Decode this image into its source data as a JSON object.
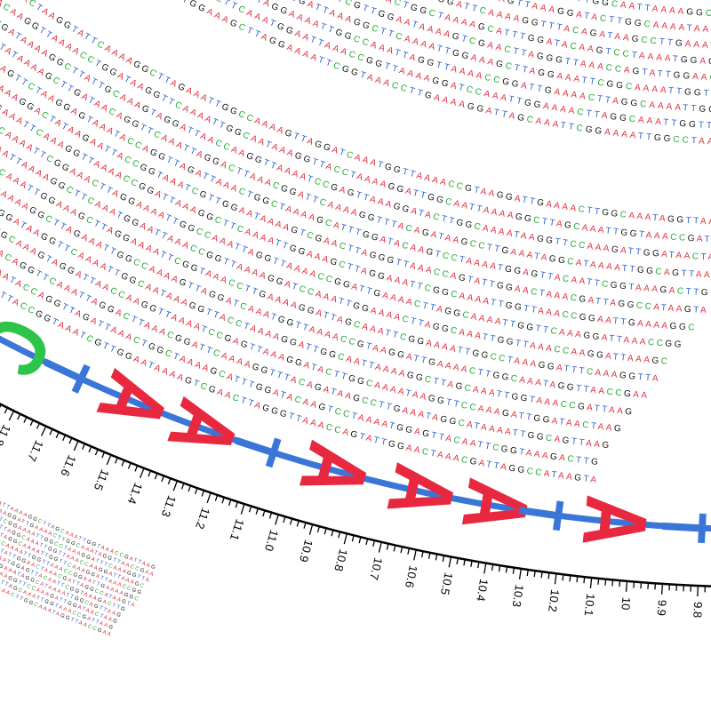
{
  "sequence_logo": {
    "letters": [
      "C",
      "T",
      "A",
      "A",
      "T",
      "A",
      "A",
      "A",
      "T",
      "A",
      "T"
    ],
    "ticks": [
      "11.8",
      "11.7",
      "11.6",
      "11.5",
      "11.4",
      "11.3",
      "11.2",
      "11.1",
      "11.0",
      "10.9",
      "10.8",
      "10.7",
      "10.6",
      "10.5",
      "10.4",
      "10.3",
      "10.2",
      "10.1",
      "10",
      "9.9",
      "9.8"
    ],
    "reads": [
      "GGTTGAATCAAAAGGACTATAAGAATTACCGGTAAATCGTTGGAATAAAAGTCGAACTTAGGGTTAAACCAGTATTGGAACTAAACGATTAGGCCATAAGTA",
      "TATTGGCAAAGTTCTAAGGAGTAAATACCAGGTTAGATTAAACTGGCTAAAAGCATTTGGATACAAGTCCTAAAATGGAGTTACAATTCGGTAAAGACTTG",
      "CCAAGGTTATAAAAGCTTGATAACAGGTTCAAATTAGGACTTAAACGGATTCAAAAGGTTTACAGATAAGCCTTGAAATAGGCATAAAATTGGCAGTTAAG",
      "AAGTTCGATAAAAGGCTTATTGCAAAGTAGGATTAACCAAGGTTAAAATCCGAGTTAAAGGATACTTGGCAAAATAAGGTTCCAAAGATTGGATAACTAAG",
      "GATTACAAGGTTAAAACCTGGATAAGGTTCAAAATTGGCAATAAAGGTTACCTAAAAGGATTGGCAATTAAAAGGCTTAGCAAATTGGTAAACCGATTAAG",
      "TTGGAAACTAAGGTATTCAAAAGGCTTAGAAATTGGCCAAAAGTTAGGATCAAATGGTTAAAACCGTAAGGATTGAAAACTTGGCAAATAGGTTAACCGAA",
      "ACGGTTAAAAGGATTCCAAATTGGAAAGCTTAGGAAAATTCGGTAAACCTTGAAAAGGATTAGCAAATTCGGAAAATTGGCCTAAAGGATTTCAAAGGTTA",
      "GGATAAAACTTGGCAATTAAAAGGCTTCAAATGGAATTAAACCGGTTAAAAGGATCCAAATTGGAAAACTTAGGCAAATTGGTTAAACCAAGGATTAAAGC",
      "CTTAAAGGATTGGCAAAATTCGGAAACTTAGGAAAATTGGCCAAATTAGGTTAAAACCGGATTGAAAACTTAGGCAAAATTGGTTCAAAGGATTAAACCGG",
      "TAAAAGGCTTGGAAATTCAAAGGTTAAAACCGGATTAAAGGCTTCAAAATTGGAAAGCTTAGGAAATTCGGCAAAATTGGTTAAACCGGAATTGAAAAGGC"
    ]
  }
}
